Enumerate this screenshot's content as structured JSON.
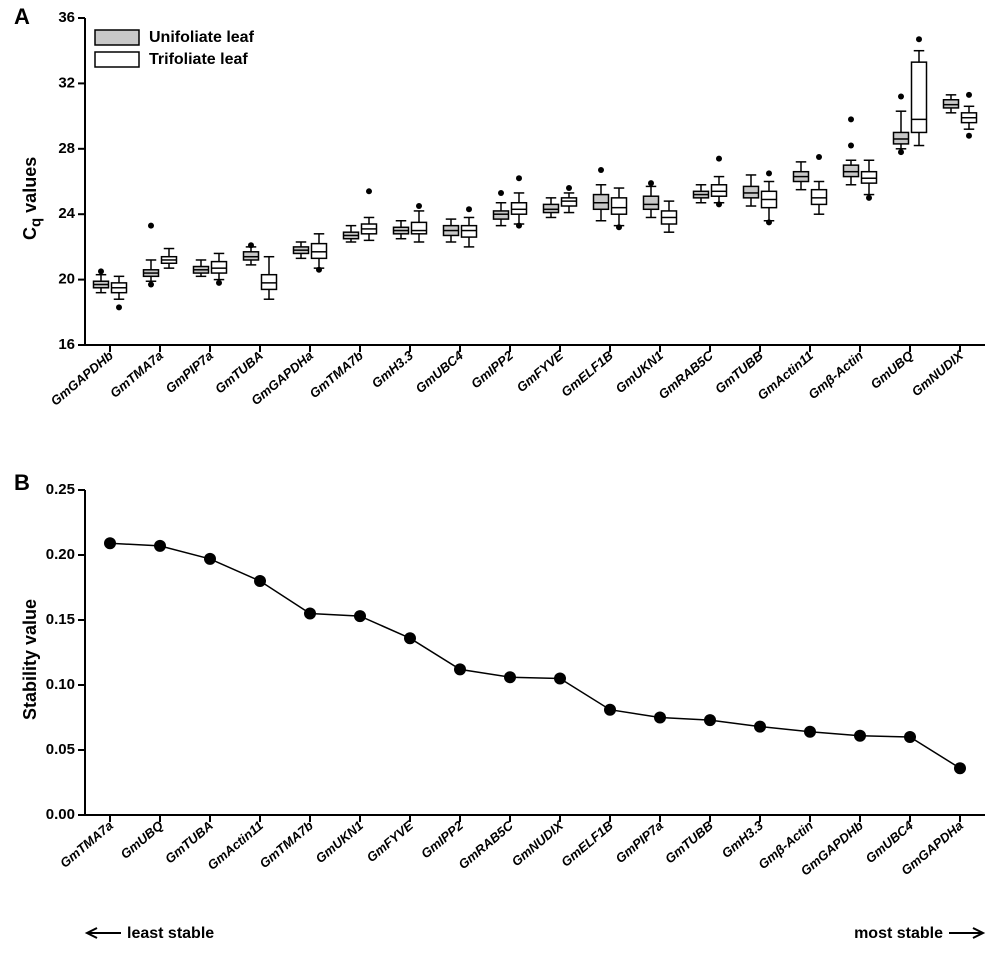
{
  "panelA": {
    "label": "A",
    "type": "boxplot",
    "yLabel": "Cq values",
    "yLabelAttr": "C_q values",
    "ylim": [
      16,
      36
    ],
    "yticks": [
      16,
      20,
      24,
      28,
      32,
      36
    ],
    "background": "#ffffff",
    "axisColor": "#000000",
    "axisWidth": 2,
    "tickFontSize": 15,
    "tickFontWeight": "bold",
    "catLabelFontSize": 13,
    "catLabelFontWeight": "bold",
    "catLabelFontStyle": "italic",
    "legend": {
      "items": [
        {
          "label": "Unifoliate leaf",
          "fill": "#c8c8c8",
          "stroke": "#000000"
        },
        {
          "label": "Trifoliate leaf",
          "fill": "#ffffff",
          "stroke": "#000000"
        }
      ],
      "fontSize": 16,
      "fontWeight": "bold"
    },
    "boxStroke": "#000000",
    "boxStrokeWidth": 1.5,
    "whiskerWidth": 1.5,
    "outlierColor": "#000000",
    "outlierRadius": 3.0,
    "categories": [
      "GmGAPDHb",
      "GmTMA7a",
      "GmPIP7a",
      "GmTUBA",
      "GmGAPDHa",
      "GmTMA7b",
      "GmH3.3",
      "GmUBC4",
      "GmIPP2",
      "GmFYVE",
      "GmELF1B",
      "GmUKN1",
      "GmRAB5C",
      "GmTUBB",
      "GmActin11",
      "Gmβ-Actin",
      "GmUBQ",
      "GmNUDIX"
    ],
    "series": [
      {
        "name": "Unifoliate leaf",
        "fill": "#c8c8c8",
        "boxes": [
          {
            "low": 19.2,
            "q1": 19.5,
            "med": 19.7,
            "q3": 19.9,
            "high": 20.3,
            "out": [
              20.5
            ]
          },
          {
            "low": 19.9,
            "q1": 20.2,
            "med": 20.4,
            "q3": 20.6,
            "high": 21.2,
            "out": [
              19.7,
              23.3
            ]
          },
          {
            "low": 20.2,
            "q1": 20.4,
            "med": 20.6,
            "q3": 20.8,
            "high": 21.2,
            "out": []
          },
          {
            "low": 20.9,
            "q1": 21.2,
            "med": 21.4,
            "q3": 21.7,
            "high": 22.0,
            "out": [
              22.1
            ]
          },
          {
            "low": 21.3,
            "q1": 21.6,
            "med": 21.8,
            "q3": 22.0,
            "high": 22.3,
            "out": []
          },
          {
            "low": 22.3,
            "q1": 22.5,
            "med": 22.7,
            "q3": 22.9,
            "high": 23.3,
            "out": []
          },
          {
            "low": 22.5,
            "q1": 22.8,
            "med": 23.0,
            "q3": 23.2,
            "high": 23.6,
            "out": []
          },
          {
            "low": 22.3,
            "q1": 22.7,
            "med": 23.0,
            "q3": 23.3,
            "high": 23.7,
            "out": []
          },
          {
            "low": 23.3,
            "q1": 23.7,
            "med": 24.0,
            "q3": 24.2,
            "high": 24.7,
            "out": [
              25.3
            ]
          },
          {
            "low": 23.8,
            "q1": 24.1,
            "med": 24.3,
            "q3": 24.6,
            "high": 25.0,
            "out": []
          },
          {
            "low": 23.6,
            "q1": 24.3,
            "med": 24.7,
            "q3": 25.2,
            "high": 25.8,
            "out": [
              26.7
            ]
          },
          {
            "low": 23.8,
            "q1": 24.3,
            "med": 24.6,
            "q3": 25.1,
            "high": 25.7,
            "out": [
              25.9
            ]
          },
          {
            "low": 24.7,
            "q1": 25.0,
            "med": 25.2,
            "q3": 25.4,
            "high": 25.8,
            "out": []
          },
          {
            "low": 24.5,
            "q1": 25.0,
            "med": 25.3,
            "q3": 25.7,
            "high": 26.4,
            "out": []
          },
          {
            "low": 25.5,
            "q1": 26.0,
            "med": 26.3,
            "q3": 26.6,
            "high": 27.2,
            "out": []
          },
          {
            "low": 25.8,
            "q1": 26.3,
            "med": 26.6,
            "q3": 27.0,
            "high": 27.3,
            "out": [
              28.2,
              29.8
            ]
          },
          {
            "low": 28.0,
            "q1": 28.3,
            "med": 28.6,
            "q3": 29.0,
            "high": 30.3,
            "out": [
              27.8,
              31.2
            ]
          },
          {
            "low": 30.2,
            "q1": 30.5,
            "med": 30.7,
            "q3": 31.0,
            "high": 31.3,
            "out": []
          }
        ]
      },
      {
        "name": "Trifoliate leaf",
        "fill": "#ffffff",
        "boxes": [
          {
            "low": 18.8,
            "q1": 19.2,
            "med": 19.5,
            "q3": 19.8,
            "high": 20.2,
            "out": [
              18.3
            ]
          },
          {
            "low": 20.7,
            "q1": 21.0,
            "med": 21.2,
            "q3": 21.4,
            "high": 21.9,
            "out": []
          },
          {
            "low": 20.0,
            "q1": 20.4,
            "med": 20.7,
            "q3": 21.1,
            "high": 21.6,
            "out": [
              19.8
            ]
          },
          {
            "low": 18.8,
            "q1": 19.4,
            "med": 19.8,
            "q3": 20.3,
            "high": 21.4,
            "out": []
          },
          {
            "low": 20.7,
            "q1": 21.3,
            "med": 21.7,
            "q3": 22.2,
            "high": 22.8,
            "out": [
              20.6
            ]
          },
          {
            "low": 22.4,
            "q1": 22.8,
            "med": 23.1,
            "q3": 23.4,
            "high": 23.8,
            "out": [
              25.4
            ]
          },
          {
            "low": 22.3,
            "q1": 22.8,
            "med": 23.0,
            "q3": 23.5,
            "high": 24.2,
            "out": [
              24.5
            ]
          },
          {
            "low": 22.0,
            "q1": 22.6,
            "med": 23.0,
            "q3": 23.3,
            "high": 23.8,
            "out": [
              24.3
            ]
          },
          {
            "low": 23.4,
            "q1": 24.0,
            "med": 24.3,
            "q3": 24.7,
            "high": 25.3,
            "out": [
              23.3,
              26.2
            ]
          },
          {
            "low": 24.1,
            "q1": 24.5,
            "med": 24.8,
            "q3": 25.0,
            "high": 25.3,
            "out": [
              25.6
            ]
          },
          {
            "low": 23.3,
            "q1": 24.0,
            "med": 24.4,
            "q3": 25.0,
            "high": 25.6,
            "out": [
              23.2
            ]
          },
          {
            "low": 22.9,
            "q1": 23.4,
            "med": 23.8,
            "q3": 24.2,
            "high": 24.8,
            "out": []
          },
          {
            "low": 24.7,
            "q1": 25.1,
            "med": 25.4,
            "q3": 25.8,
            "high": 26.3,
            "out": [
              24.6,
              27.4
            ]
          },
          {
            "low": 23.6,
            "q1": 24.4,
            "med": 24.9,
            "q3": 25.4,
            "high": 26.0,
            "out": [
              23.5,
              26.5
            ]
          },
          {
            "low": 24.0,
            "q1": 24.6,
            "med": 25.0,
            "q3": 25.5,
            "high": 26.0,
            "out": [
              27.5
            ]
          },
          {
            "low": 25.2,
            "q1": 25.9,
            "med": 26.2,
            "q3": 26.6,
            "high": 27.3,
            "out": [
              25.0
            ]
          },
          {
            "low": 28.2,
            "q1": 29.0,
            "med": 29.8,
            "q3": 33.3,
            "high": 34.0,
            "out": [
              34.7
            ]
          },
          {
            "low": 29.2,
            "q1": 29.6,
            "med": 29.9,
            "q3": 30.2,
            "high": 30.6,
            "out": [
              28.8,
              31.3
            ]
          }
        ]
      }
    ]
  },
  "panelB": {
    "label": "B",
    "type": "line",
    "yLabel": "Stability value",
    "ylim": [
      0,
      0.25
    ],
    "yticks": [
      0.0,
      0.05,
      0.1,
      0.15,
      0.2,
      0.25
    ],
    "background": "#ffffff",
    "axisColor": "#000000",
    "axisWidth": 2,
    "tickFontSize": 15,
    "tickFontWeight": "bold",
    "lineColor": "#000000",
    "lineWidth": 1.5,
    "markerColor": "#000000",
    "markerRadius": 6,
    "catLabelFontSize": 13,
    "catLabelFontWeight": "bold",
    "catLabelFontStyle": "italic",
    "leftLabel": "least stable",
    "rightLabel": "most stable",
    "points": [
      {
        "cat": "GmTMA7a",
        "val": 0.209
      },
      {
        "cat": "GmUBQ",
        "val": 0.207
      },
      {
        "cat": "GmTUBA",
        "val": 0.197
      },
      {
        "cat": "GmActin11",
        "val": 0.18
      },
      {
        "cat": "GmTMA7b",
        "val": 0.155
      },
      {
        "cat": "GmUKN1",
        "val": 0.153
      },
      {
        "cat": "GmFYVE",
        "val": 0.136
      },
      {
        "cat": "GmIPP2",
        "val": 0.112
      },
      {
        "cat": "GmRAB5C",
        "val": 0.106
      },
      {
        "cat": "GmNUDIX",
        "val": 0.105
      },
      {
        "cat": "GmELF1B",
        "val": 0.081
      },
      {
        "cat": "GmPIP7a",
        "val": 0.075
      },
      {
        "cat": "GmTUBB",
        "val": 0.073
      },
      {
        "cat": "GmH3.3",
        "val": 0.068
      },
      {
        "cat": "Gmβ-Actin",
        "val": 0.064
      },
      {
        "cat": "GmGAPDHb",
        "val": 0.061
      },
      {
        "cat": "GmUBC4",
        "val": 0.06
      },
      {
        "cat": "GmGAPDHa",
        "val": 0.036
      }
    ]
  }
}
